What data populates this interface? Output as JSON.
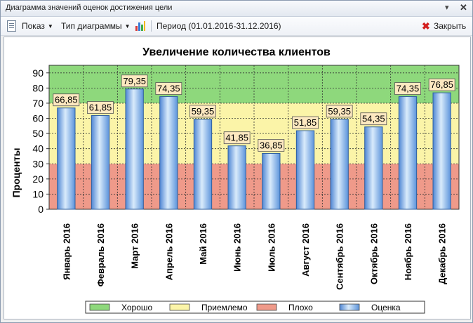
{
  "window": {
    "title": "Диаграмма значений оценок достижения цели"
  },
  "toolbar": {
    "show_label": "Показ",
    "chart_type_label": "Тип диаграммы",
    "period_label": "Период (01.01.2016-31.12.2016)",
    "close_label": "Закрыть"
  },
  "chart_data": {
    "type": "bar",
    "title": "Увеличение количества клиентов",
    "xlabel": "",
    "ylabel": "Проценты",
    "ylim": [
      0,
      95
    ],
    "yticks": [
      0,
      10,
      20,
      30,
      40,
      50,
      60,
      70,
      80,
      90
    ],
    "grid": true,
    "categories": [
      "Январь 2016",
      "Февраль 2016",
      "Март 2016",
      "Апрель 2016",
      "Май 2016",
      "Июнь 2016",
      "Июль 2016",
      "Август 2016",
      "Сентябрь 2016",
      "Октябрь 2016",
      "Ноябрь 2016",
      "Декабрь 2016"
    ],
    "series": [
      {
        "name": "Оценка",
        "values": [
          66.85,
          61.85,
          79.35,
          74.35,
          59.35,
          41.85,
          36.85,
          51.85,
          59.35,
          54.35,
          74.35,
          76.85
        ]
      }
    ],
    "data_labels": [
      "66,85",
      "61,85",
      "79,35",
      "74,35",
      "59,35",
      "41,85",
      "36,85",
      "51,85",
      "59,35",
      "54,35",
      "74,35",
      "76,85"
    ],
    "bands": [
      {
        "name": "Плохо",
        "from": 0,
        "to": 30,
        "color": "#ef9a8a"
      },
      {
        "name": "Приемлемо",
        "from": 30,
        "to": 70,
        "color": "#fbf4a8"
      },
      {
        "name": "Хорошо",
        "from": 70,
        "to": 95,
        "color": "#8ed87c"
      }
    ],
    "legend": {
      "position": "bottom",
      "items": [
        {
          "label": "Хорошо",
          "color": "#8ed87c"
        },
        {
          "label": "Приемлемо",
          "color": "#fbf4a8"
        },
        {
          "label": "Плохо",
          "color": "#ef9a8a"
        },
        {
          "label": "Оценка",
          "color": "#7fb2e8"
        }
      ]
    }
  }
}
